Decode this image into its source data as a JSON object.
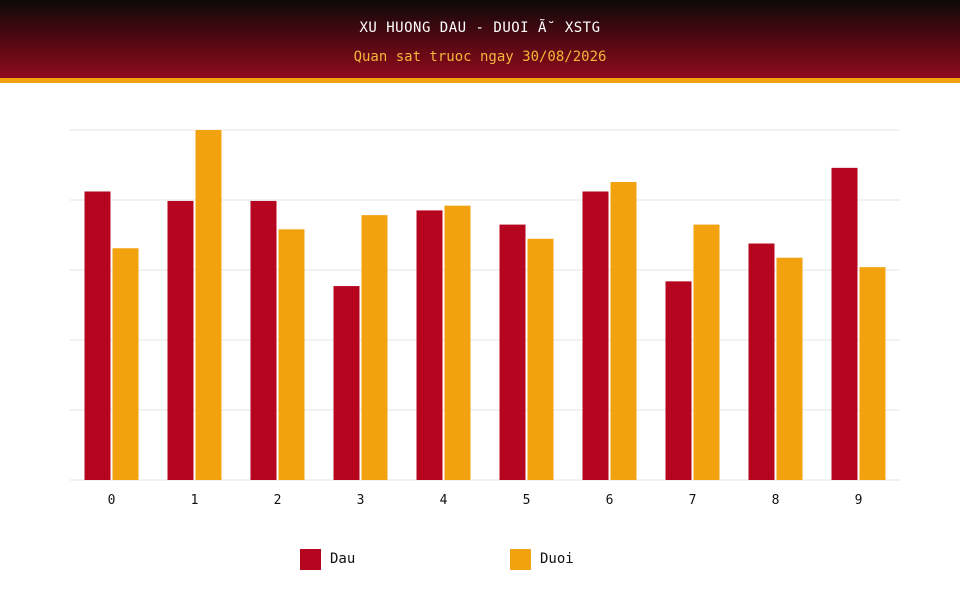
{
  "header": {
    "title": "XU HUONG DAU - DUOI Ã˘ XSTG",
    "subtitle": "Quan sat truoc ngay 30/08/2026"
  },
  "colors": {
    "dau": "#b5051f",
    "duoi": "#f2a20f",
    "grid": "#e6e6e6"
  },
  "chart_data": {
    "type": "bar",
    "categories": [
      "0",
      "1",
      "2",
      "3",
      "4",
      "5",
      "6",
      "7",
      "8",
      "9"
    ],
    "series": [
      {
        "name": "Dau",
        "values": [
          12.2,
          11.8,
          11.8,
          8.2,
          11.4,
          10.8,
          12.2,
          8.4,
          10.0,
          13.2
        ]
      },
      {
        "name": "Duoi",
        "values": [
          9.8,
          14.8,
          10.6,
          11.2,
          11.6,
          10.2,
          12.6,
          10.8,
          9.4,
          9.0
        ]
      }
    ],
    "ylim": [
      0,
      14.8
    ],
    "grid": true,
    "legend": "bottom-center"
  }
}
